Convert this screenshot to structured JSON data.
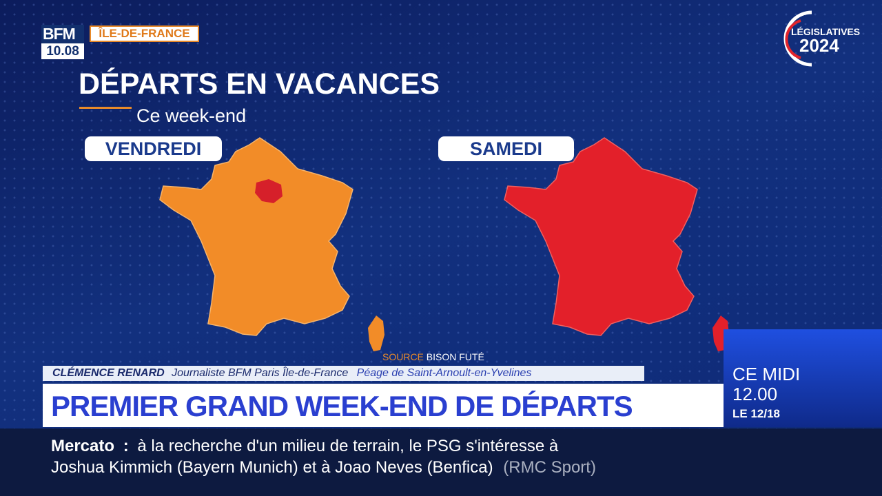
{
  "logo": {
    "brand": "BFM",
    "clock": "10.08",
    "region": "ÎLE-DE-FRANCE"
  },
  "badge": {
    "label": "LÉGISLATIVES",
    "year": "2024"
  },
  "graphic": {
    "title": "DÉPARTS EN VACANCES",
    "subtitle": "Ce week-end",
    "maps": [
      {
        "day": "VENDREDI"
      },
      {
        "day": "SAMEDI"
      }
    ],
    "source": {
      "label": "SOURCE",
      "name": "BISON FUTÉ"
    }
  },
  "lower_third": {
    "name": "CLÉMENCE RENARD",
    "role": "Journaliste BFM Paris Île-de-France",
    "location": "Péage de Saint-Arnoult-en-Yvelines",
    "headline": "PREMIER GRAND WEEK-END DE DÉPARTS"
  },
  "next_show": {
    "label": "CE MIDI",
    "time": "12.00",
    "program": "LE 12/18"
  },
  "ticker": {
    "topic": "Mercato",
    "separator": ":",
    "line1": "à la recherche d'un milieu de terrain, le PSG s'intéresse à",
    "line2": "Joshua Kimmich (Bayern Munich) et à Joao Neves (Benfica)",
    "source": "(RMC Sport)"
  }
}
